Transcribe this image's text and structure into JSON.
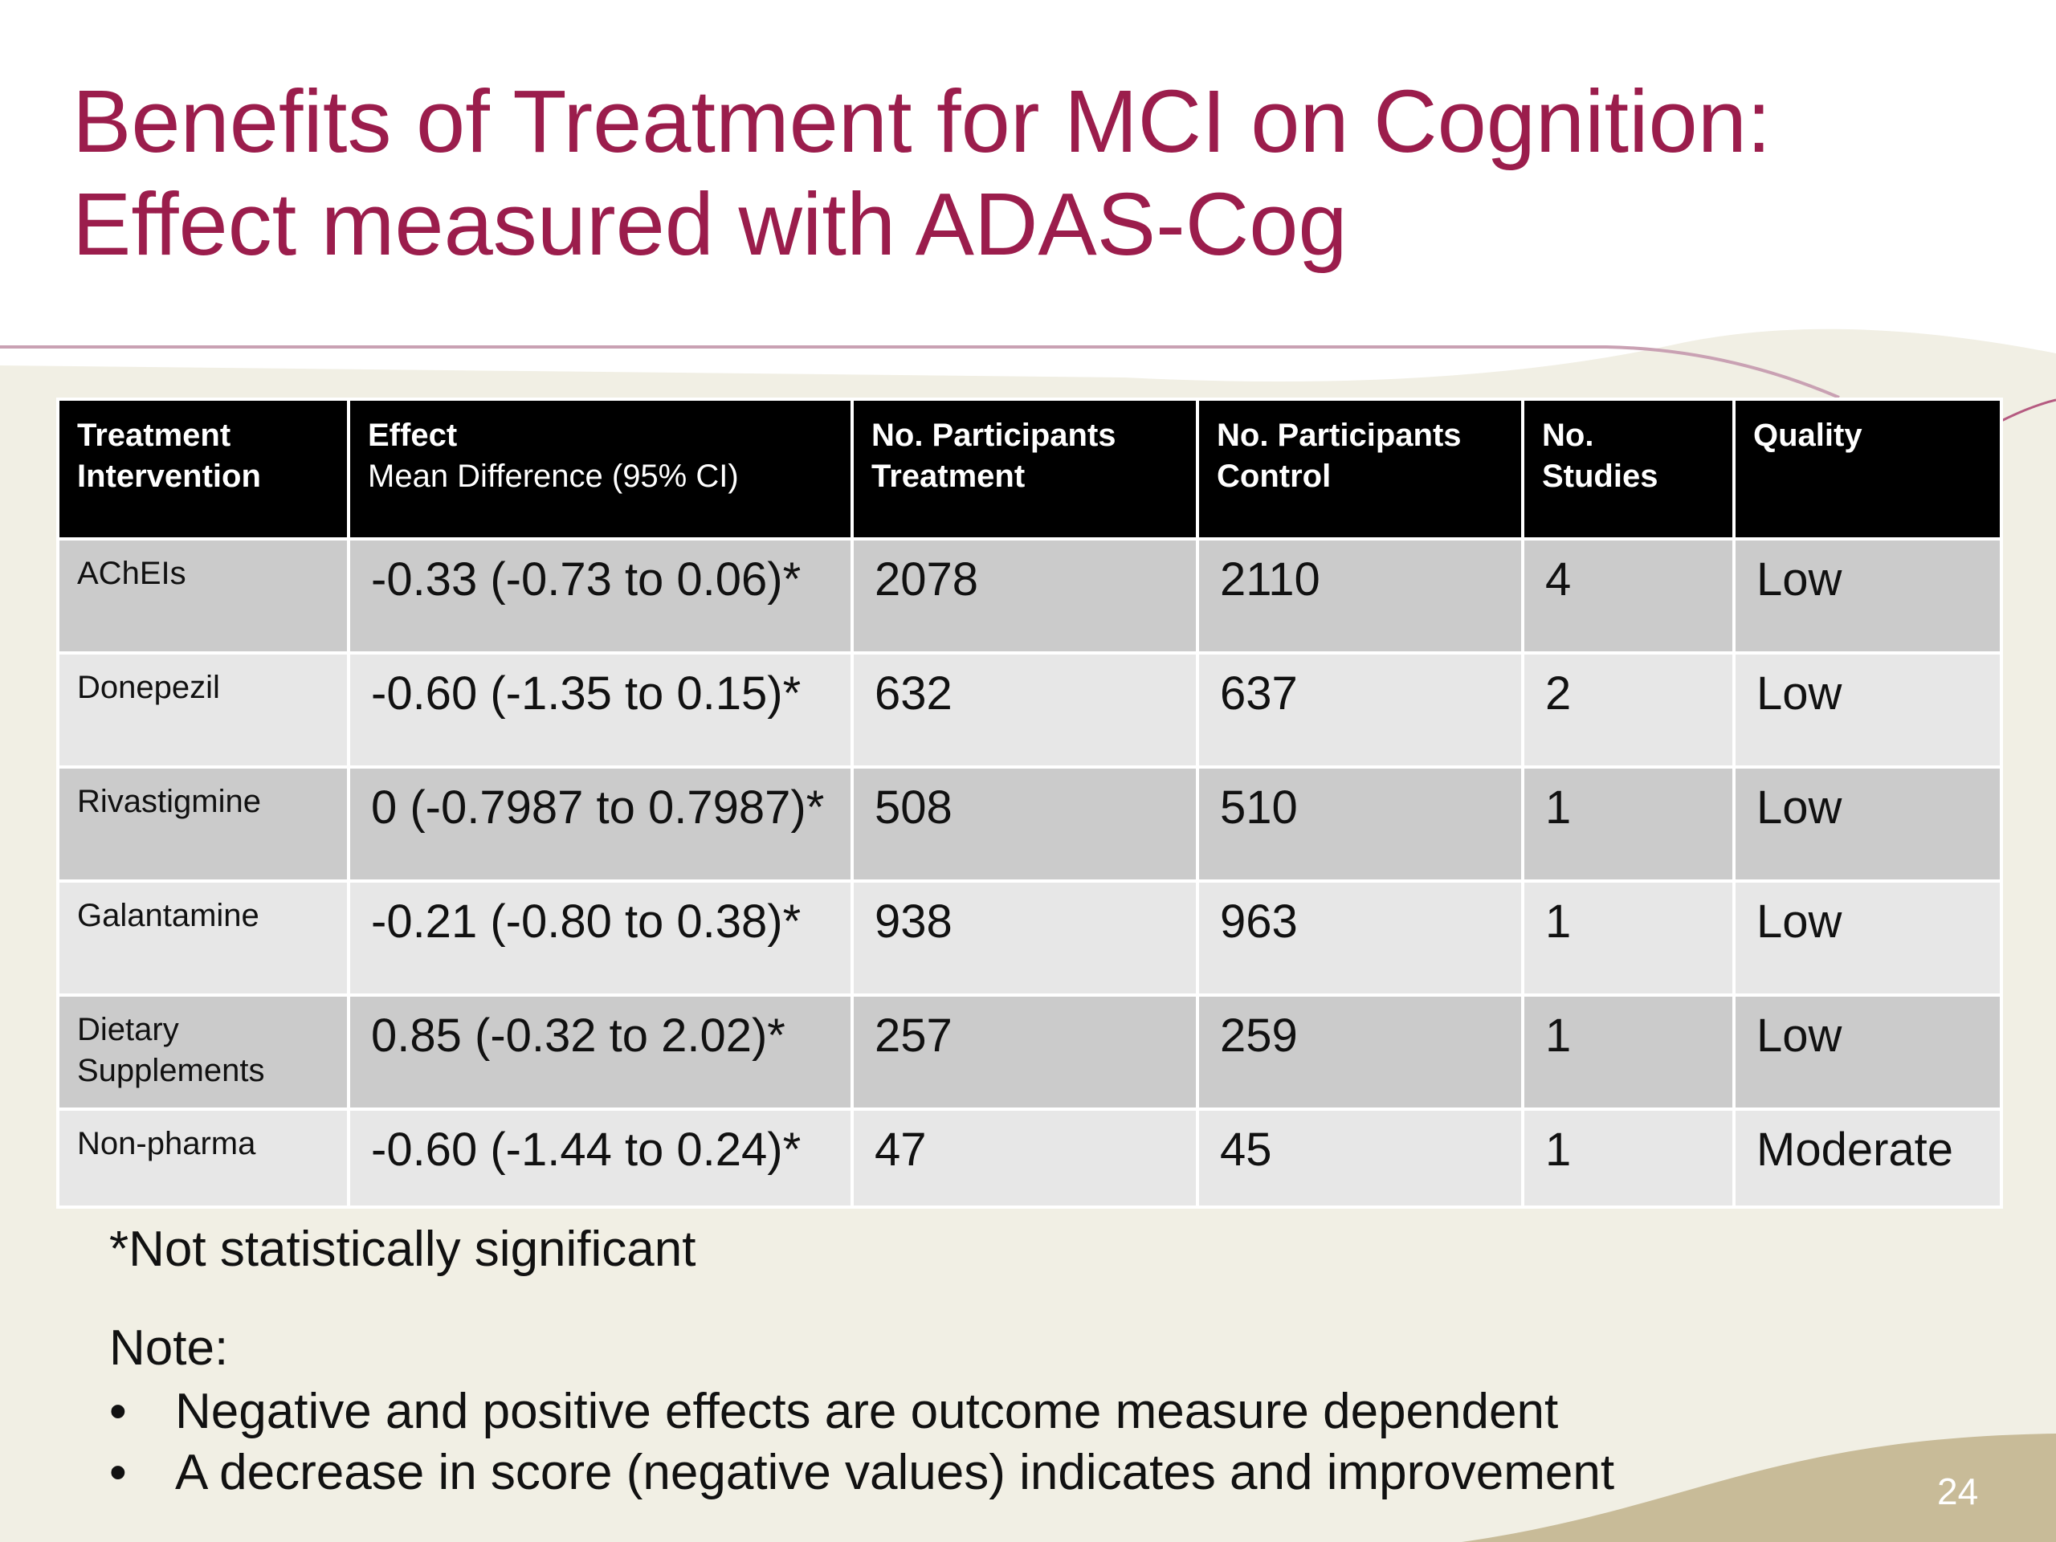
{
  "slide": {
    "title": "Benefits of Treatment for MCI on Cognition: Effect measured with ADAS-Cog",
    "page_number": "24"
  },
  "colors": {
    "title": "#9b1d4c",
    "background": "#f1efe4",
    "footer_band": "#c8bb98",
    "header_row": "#000000",
    "row_dark": "#cbcbcb",
    "row_light": "#e7e7e7"
  },
  "table": {
    "headers": [
      {
        "line1": "Treatment",
        "line2": "Intervention"
      },
      {
        "line1": "Effect",
        "line2": "Mean Difference (95% CI)"
      },
      {
        "line1": "No. Participants",
        "line2": "Treatment"
      },
      {
        "line1": "No. Participants",
        "line2": "Control"
      },
      {
        "line1": "No.",
        "line2": "Studies"
      },
      {
        "line1": "Quality",
        "line2": ""
      }
    ],
    "rows": [
      {
        "intervention": "AChEIs",
        "effect": "-0.33 (-0.73  to 0.06)*",
        "treatment": "2078",
        "control": "2110",
        "studies": "4",
        "quality": "Low"
      },
      {
        "intervention": "Donepezil",
        "effect": "-0.60 (-1.35 to 0.15)*",
        "treatment": "632",
        "control": "637",
        "studies": "2",
        "quality": "Low"
      },
      {
        "intervention": "Rivastigmine",
        "effect": "0  (-0.7987 to 0.7987)*",
        "treatment": "508",
        "control": "510",
        "studies": "1",
        "quality": "Low"
      },
      {
        "intervention": "Galantamine",
        "effect": "-0.21 (-0.80 to 0.38)*",
        "treatment": "938",
        "control": "963",
        "studies": "1",
        "quality": "Low"
      },
      {
        "intervention_line1": "Dietary",
        "intervention_line2": "Supplements",
        "effect": "0.85 (-0.32 to 2.02)*",
        "treatment": "257",
        "control": "259",
        "studies": "1",
        "quality": "Low"
      },
      {
        "intervention": "Non-pharma",
        "effect": "-0.60 (-1.44 to 0.24)*",
        "treatment": "47",
        "control": "45",
        "studies": "1",
        "quality": "Moderate"
      }
    ]
  },
  "footnote": "*Not statistically significant",
  "note": {
    "heading": "Note:",
    "bullet_symbol": "•",
    "items": [
      "Negative and positive effects are outcome measure dependent",
      "A decrease in score (negative values) indicates and improvement"
    ]
  }
}
